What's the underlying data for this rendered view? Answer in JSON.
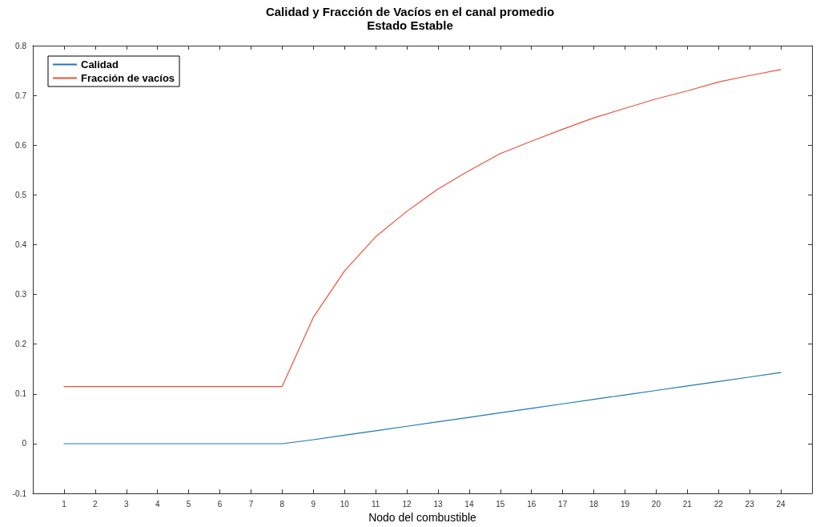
{
  "chart_data": {
    "type": "line",
    "title": "Calidad y Fracción de Vacíos en el canal promedio",
    "subtitle": "Estado Estable",
    "xlabel": "Nodo del combustible",
    "x": [
      1,
      2,
      3,
      4,
      5,
      6,
      7,
      8,
      9,
      10,
      11,
      12,
      13,
      14,
      15,
      16,
      17,
      18,
      19,
      20,
      21,
      22,
      23,
      24
    ],
    "series": [
      {
        "name": "Calidad",
        "color": "#1f77b4",
        "values": [
          0,
          0,
          0,
          0,
          0,
          0,
          0,
          0,
          0.008,
          0.017,
          0.026,
          0.035,
          0.044,
          0.053,
          0.062,
          0.071,
          0.08,
          0.089,
          0.098,
          0.107,
          0.116,
          0.125,
          0.134,
          0.143
        ]
      },
      {
        "name": "Fracción de vacíos",
        "color": "#e8553a",
        "values": [
          0.115,
          0.115,
          0.115,
          0.115,
          0.115,
          0.115,
          0.115,
          0.115,
          0.254,
          0.347,
          0.416,
          0.467,
          0.512,
          0.549,
          0.583,
          0.608,
          0.632,
          0.655,
          0.674,
          0.693,
          0.709,
          0.727,
          0.74,
          0.752
        ]
      }
    ],
    "xlim": [
      0,
      25
    ],
    "xticks": [
      1,
      2,
      3,
      4,
      5,
      6,
      7,
      8,
      9,
      10,
      11,
      12,
      13,
      14,
      15,
      16,
      17,
      18,
      19,
      20,
      21,
      22,
      23,
      24
    ],
    "ylim": [
      -0.1,
      0.8
    ],
    "yticks": [
      -0.1,
      0,
      0.1,
      0.2,
      0.3,
      0.4,
      0.5,
      0.6,
      0.7,
      0.8
    ],
    "grid": false,
    "legend": "top left",
    "marker": "none",
    "line_style": "solid"
  }
}
